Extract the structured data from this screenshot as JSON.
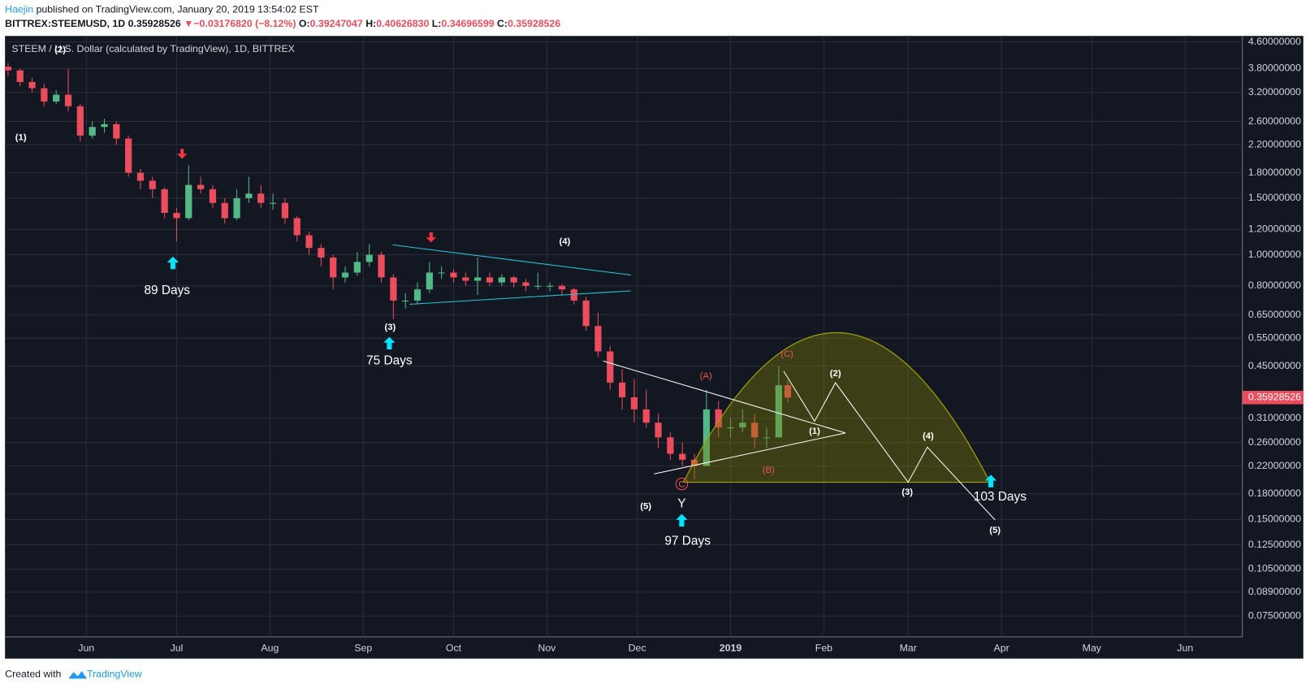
{
  "header": {
    "author": "Haejin",
    "published": "published on TradingView.com, January 20, 2019 13:54:02 EST",
    "symbol": "BITTREX:STEEMUSD, 1D",
    "price": "0.35928526",
    "arrow": "▼",
    "change": "−0.03176820 (−8.12%)",
    "o_label": "O:",
    "o": "0.39247047",
    "h_label": "H:",
    "h": "0.40626830",
    "l_label": "L:",
    "l": "0.34696599",
    "c_label": "C:",
    "c": "0.35928526"
  },
  "footer": {
    "created": "Created with",
    "brand": "TradingView"
  },
  "chart_data": {
    "type": "candlestick",
    "title": "STEEM / U.S. Dollar (calculated by TradingView), 1D, BITTREX",
    "up_color": "#53b987",
    "down_color": "#eb4d5c",
    "log_scale": true,
    "grid": true,
    "xlim": [
      -27,
      384
    ],
    "xticks": [
      {
        "value": 0,
        "label": "Jun"
      },
      {
        "value": 30,
        "label": "Jul"
      },
      {
        "value": 61,
        "label": "Aug"
      },
      {
        "value": 92,
        "label": "Sep"
      },
      {
        "value": 122,
        "label": "Oct"
      },
      {
        "value": 153,
        "label": "Nov"
      },
      {
        "value": 183,
        "label": "Dec"
      },
      {
        "value": 214,
        "label": "2019"
      },
      {
        "value": 245,
        "label": "Feb"
      },
      {
        "value": 273,
        "label": "Mar"
      },
      {
        "value": 304,
        "label": "Apr"
      },
      {
        "value": 334,
        "label": "May"
      },
      {
        "value": 365,
        "label": "Jun"
      }
    ],
    "ylim": [
      0.0646,
      4.8
    ],
    "yticks": [
      {
        "value": 4.6,
        "label": "4.60000000"
      },
      {
        "value": 3.8,
        "label": "3.80000000"
      },
      {
        "value": 3.2,
        "label": "3.20000000"
      },
      {
        "value": 2.6,
        "label": "2.60000000"
      },
      {
        "value": 2.2,
        "label": "2.20000000"
      },
      {
        "value": 1.8,
        "label": "1.80000000"
      },
      {
        "value": 1.5,
        "label": "1.50000000"
      },
      {
        "value": 1.2,
        "label": "1.20000000"
      },
      {
        "value": 1.0,
        "label": "1.00000000"
      },
      {
        "value": 0.8,
        "label": "0.80000000"
      },
      {
        "value": 0.65,
        "label": "0.65000000"
      },
      {
        "value": 0.55,
        "label": "0.55000000"
      },
      {
        "value": 0.45,
        "label": "0.45000000"
      },
      {
        "value": 0.31,
        "label": "0.31000000"
      },
      {
        "value": 0.26,
        "label": "0.26000000"
      },
      {
        "value": 0.22,
        "label": "0.22000000"
      },
      {
        "value": 0.18,
        "label": "0.18000000"
      },
      {
        "value": 0.15,
        "label": "0.15000000"
      },
      {
        "value": 0.125,
        "label": "0.12500000"
      },
      {
        "value": 0.105,
        "label": "0.10500000"
      },
      {
        "value": 0.089,
        "label": "0.08900000"
      },
      {
        "value": 0.075,
        "label": "0.07500000"
      }
    ],
    "x": [
      -26,
      -22,
      -18,
      -14,
      -10,
      -6,
      -2,
      2,
      6,
      10,
      14,
      18,
      22,
      26,
      30,
      34,
      38,
      42,
      46,
      50,
      54,
      58,
      62,
      66,
      70,
      74,
      78,
      82,
      86,
      90,
      94,
      98,
      102,
      106,
      110,
      114,
      118,
      122,
      126,
      130,
      134,
      138,
      142,
      146,
      150,
      154,
      158,
      162,
      166,
      170,
      174,
      178,
      182,
      186,
      190,
      194,
      198,
      202,
      206,
      210,
      214,
      218,
      222,
      226,
      230,
      233
    ],
    "ohlc": [
      [
        3.85,
        3.95,
        3.6,
        3.75
      ],
      [
        3.75,
        3.8,
        3.35,
        3.45
      ],
      [
        3.45,
        3.55,
        3.2,
        3.3
      ],
      [
        3.3,
        3.4,
        2.9,
        3.0
      ],
      [
        3.0,
        3.25,
        2.95,
        3.15
      ],
      [
        3.15,
        3.8,
        2.8,
        2.9
      ],
      [
        2.9,
        2.95,
        2.25,
        2.35
      ],
      [
        2.35,
        2.6,
        2.3,
        2.5
      ],
      [
        2.5,
        2.65,
        2.4,
        2.55
      ],
      [
        2.55,
        2.6,
        2.2,
        2.3
      ],
      [
        2.3,
        2.35,
        1.75,
        1.8
      ],
      [
        1.8,
        1.85,
        1.6,
        1.7
      ],
      [
        1.7,
        1.75,
        1.5,
        1.6
      ],
      [
        1.6,
        1.62,
        1.3,
        1.35
      ],
      [
        1.35,
        1.4,
        1.1,
        1.3
      ],
      [
        1.3,
        1.9,
        1.28,
        1.65
      ],
      [
        1.65,
        1.75,
        1.55,
        1.6
      ],
      [
        1.6,
        1.65,
        1.4,
        1.45
      ],
      [
        1.45,
        1.5,
        1.25,
        1.3
      ],
      [
        1.3,
        1.6,
        1.28,
        1.5
      ],
      [
        1.5,
        1.75,
        1.45,
        1.55
      ],
      [
        1.55,
        1.65,
        1.4,
        1.45
      ],
      [
        1.45,
        1.55,
        1.38,
        1.45
      ],
      [
        1.45,
        1.5,
        1.25,
        1.3
      ],
      [
        1.3,
        1.32,
        1.1,
        1.15
      ],
      [
        1.15,
        1.18,
        1.0,
        1.05
      ],
      [
        1.05,
        1.08,
        0.92,
        0.98
      ],
      [
        0.98,
        1.0,
        0.78,
        0.85
      ],
      [
        0.85,
        0.92,
        0.82,
        0.88
      ],
      [
        0.88,
        1.02,
        0.86,
        0.95
      ],
      [
        0.95,
        1.08,
        0.92,
        1.0
      ],
      [
        1.0,
        1.02,
        0.82,
        0.85
      ],
      [
        0.85,
        0.87,
        0.63,
        0.72
      ],
      [
        0.72,
        0.76,
        0.68,
        0.72
      ],
      [
        0.72,
        0.82,
        0.7,
        0.78
      ],
      [
        0.78,
        0.95,
        0.76,
        0.88
      ],
      [
        0.88,
        0.92,
        0.84,
        0.88
      ],
      [
        0.88,
        0.9,
        0.82,
        0.85
      ],
      [
        0.85,
        0.88,
        0.8,
        0.83
      ],
      [
        0.83,
        0.98,
        0.75,
        0.85
      ],
      [
        0.85,
        0.88,
        0.8,
        0.82
      ],
      [
        0.82,
        0.87,
        0.8,
        0.85
      ],
      [
        0.85,
        0.86,
        0.79,
        0.82
      ],
      [
        0.82,
        0.84,
        0.77,
        0.8
      ],
      [
        0.8,
        0.88,
        0.78,
        0.8
      ],
      [
        0.8,
        0.82,
        0.77,
        0.8
      ],
      [
        0.8,
        0.81,
        0.75,
        0.78
      ],
      [
        0.78,
        0.79,
        0.7,
        0.72
      ],
      [
        0.72,
        0.74,
        0.58,
        0.6
      ],
      [
        0.6,
        0.66,
        0.48,
        0.5
      ],
      [
        0.5,
        0.52,
        0.38,
        0.4
      ],
      [
        0.4,
        0.44,
        0.33,
        0.36
      ],
      [
        0.36,
        0.41,
        0.3,
        0.33
      ],
      [
        0.33,
        0.38,
        0.29,
        0.3
      ],
      [
        0.3,
        0.32,
        0.25,
        0.27
      ],
      [
        0.27,
        0.28,
        0.23,
        0.24
      ],
      [
        0.24,
        0.26,
        0.22,
        0.23
      ],
      [
        0.23,
        0.24,
        0.2,
        0.22
      ],
      [
        0.22,
        0.38,
        0.22,
        0.33
      ],
      [
        0.33,
        0.35,
        0.27,
        0.29
      ],
      [
        0.29,
        0.31,
        0.27,
        0.29
      ],
      [
        0.29,
        0.33,
        0.28,
        0.3
      ],
      [
        0.3,
        0.32,
        0.25,
        0.27
      ],
      [
        0.27,
        0.29,
        0.25,
        0.27
      ],
      [
        0.27,
        0.45,
        0.27,
        0.39247047
      ],
      [
        0.39247047,
        0.4062683,
        0.34696599,
        0.35928526
      ]
    ],
    "annotations": [
      "(1)",
      "(2)",
      "89 Days",
      "(3)",
      "75 Days",
      "(4)",
      "(A)",
      "(C)",
      "(B)",
      "(2)",
      "(1)",
      "(4)",
      "(3)",
      "(5)",
      "103 Days",
      "(5)",
      "Y",
      "97 Days",
      "C"
    ]
  }
}
